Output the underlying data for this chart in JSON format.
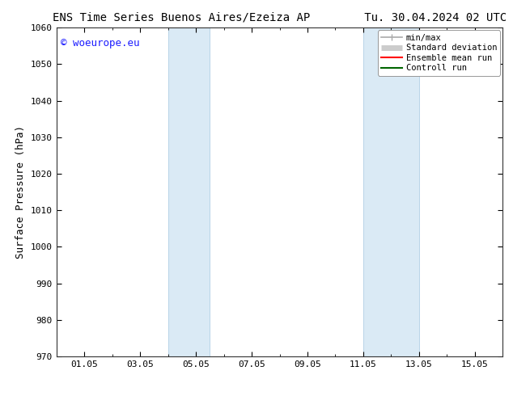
{
  "title_left": "ENS Time Series Buenos Aires/Ezeiza AP",
  "title_right": "Tu. 30.04.2024 02 UTC",
  "ylabel": "Surface Pressure (hPa)",
  "ylim": [
    970,
    1060
  ],
  "yticks": [
    970,
    980,
    990,
    1000,
    1010,
    1020,
    1030,
    1040,
    1050,
    1060
  ],
  "xlim": [
    0,
    16
  ],
  "xtick_labels": [
    "01.05",
    "03.05",
    "05.05",
    "07.05",
    "09.05",
    "11.05",
    "13.05",
    "15.05"
  ],
  "xtick_positions": [
    1,
    3,
    5,
    7,
    9,
    11,
    13,
    15
  ],
  "shaded_bands": [
    {
      "x_start": 4.0,
      "x_end": 5.5,
      "color": "#daeaf5"
    },
    {
      "x_start": 11.0,
      "x_end": 13.0,
      "color": "#daeaf5"
    }
  ],
  "shaded_band_edge_color": "#b8d4e8",
  "watermark_text": "© woeurope.eu",
  "watermark_color": "#1a1aff",
  "legend_entries": [
    {
      "label": "min/max",
      "color": "#aaaaaa",
      "lw": 1.2,
      "type": "line_with_caps"
    },
    {
      "label": "Standard deviation",
      "color": "#cccccc",
      "lw": 5,
      "type": "thick_line"
    },
    {
      "label": "Ensemble mean run",
      "color": "#ff0000",
      "lw": 1.5,
      "type": "line"
    },
    {
      "label": "Controll run",
      "color": "#006400",
      "lw": 1.5,
      "type": "line"
    }
  ],
  "bg_color": "#ffffff",
  "spine_color": "#333333",
  "title_fontsize": 10,
  "tick_fontsize": 8,
  "ylabel_fontsize": 9,
  "legend_fontsize": 7.5,
  "watermark_fontsize": 9
}
